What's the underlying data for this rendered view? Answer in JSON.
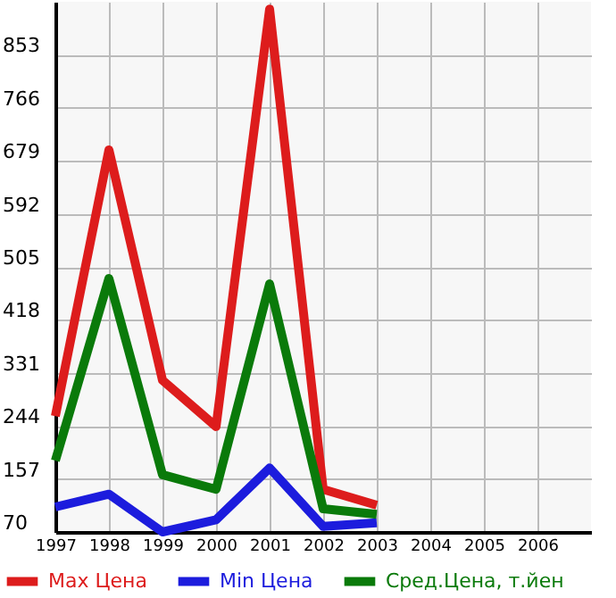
{
  "chart_data": {
    "type": "line",
    "x": [
      1997,
      1998,
      1999,
      2000,
      2001,
      2002,
      2003
    ],
    "series": [
      {
        "name": "Max Цена",
        "color": "#dd1c1c",
        "values": [
          260,
          697,
          319,
          243,
          928,
          140,
          114
        ]
      },
      {
        "name": "Min Цена",
        "color": "#1c1cdd",
        "values": [
          111,
          132,
          70,
          90,
          175,
          79,
          85
        ]
      },
      {
        "name": "Сред.Цена, т.йен",
        "color": "#0a7a0a",
        "values": [
          187,
          486,
          164,
          140,
          477,
          108,
          99
        ]
      }
    ],
    "xlim": [
      1997,
      2007
    ],
    "xticks": [
      1997,
      1998,
      1999,
      2000,
      2001,
      2002,
      2003,
      2004,
      2005,
      2006
    ],
    "ylim": [
      70,
      940
    ],
    "yticks": [
      70,
      157,
      244,
      331,
      418,
      505,
      592,
      679,
      766,
      853
    ],
    "grid": true,
    "legend": "bottom",
    "marker": "none",
    "line_style": "solid"
  }
}
